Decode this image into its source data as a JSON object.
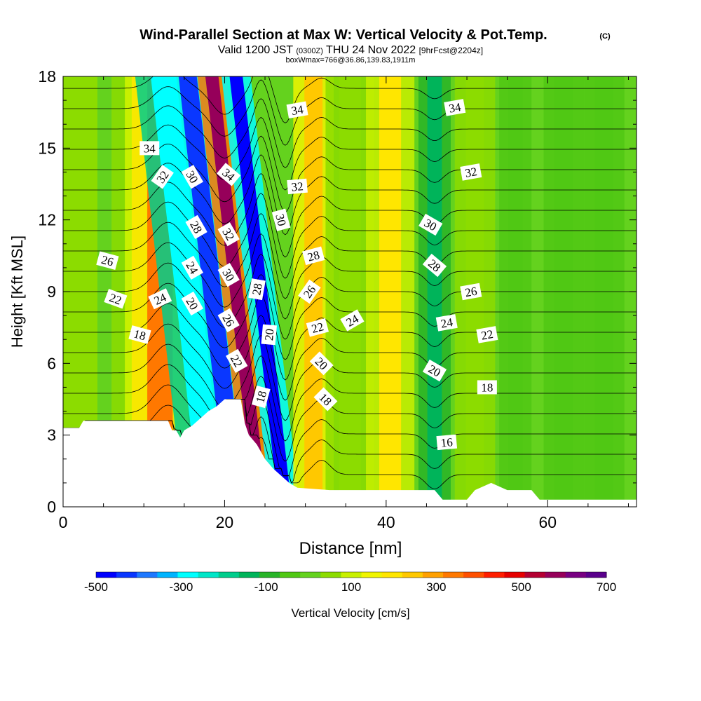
{
  "header": {
    "title": "Wind-Parallel Section at Max W: Vertical Velocity & Pot.Temp.",
    "copyright": "(C)",
    "valid_prefix": "Valid 1200 JST",
    "valid_utc": "(0300Z)",
    "valid_suffix": "THU 24 Nov 2022",
    "forecast": "[9hrFcst@2204z]",
    "box_info": "boxWmax=766@36.86,139.83,1911m"
  },
  "chart_data": {
    "type": "heatmap",
    "xlabel": "Distance [nm]",
    "ylabel": "Height [Kft MSL]",
    "xlim": [
      0,
      71
    ],
    "ylim": [
      0,
      18
    ],
    "x_ticks": [
      0,
      20,
      40,
      60
    ],
    "y_ticks": [
      0,
      3,
      6,
      9,
      12,
      15,
      18
    ],
    "colorbar": {
      "label": "Vertical Velocity [cm/s]",
      "tick_labels": [
        -500,
        -300,
        -100,
        100,
        300,
        500,
        700
      ],
      "colors": [
        "#0000ff",
        "#0a37ff",
        "#1e78ff",
        "#00b4ff",
        "#00ffff",
        "#00e6c8",
        "#00cd8c",
        "#00b45a",
        "#28b428",
        "#50c814",
        "#64d21e",
        "#8cdc00",
        "#c8f000",
        "#f0f500",
        "#ffe600",
        "#ffc800",
        "#ffa000",
        "#ff7800",
        "#ff5000",
        "#ff1e00",
        "#e60000",
        "#b40032",
        "#96005a",
        "#780082",
        "#5a008c"
      ]
    },
    "velocity_bands": [
      {
        "x": 2,
        "w": 5,
        "v": 40
      },
      {
        "x": 9,
        "w": 3,
        "v": 120
      },
      {
        "x": 12,
        "w": 3.5,
        "v": 350
      },
      {
        "x": 18.5,
        "w": 3.5,
        "v": -280
      },
      {
        "x": 21.5,
        "w": 2.5,
        "v": -450
      },
      {
        "x": 24.5,
        "w": 1.8,
        "v": 560
      },
      {
        "x": 27.5,
        "w": 1.8,
        "v": -480
      },
      {
        "x": 31,
        "w": 2.5,
        "v": 260
      },
      {
        "x": 35.5,
        "w": 3,
        "v": 60
      },
      {
        "x": 40.5,
        "w": 3,
        "v": 180
      },
      {
        "x": 46,
        "w": 2,
        "v": -150
      },
      {
        "x": 51,
        "w": 2.5,
        "v": 70
      },
      {
        "x": 56,
        "w": 2,
        "v": -60
      },
      {
        "x": 62,
        "w": 2.5,
        "v": -60
      },
      {
        "x": 67,
        "w": 2.5,
        "v": -40
      }
    ],
    "terrain": [
      [
        0,
        3.3
      ],
      [
        2,
        3.3
      ],
      [
        2.5,
        3.6
      ],
      [
        13,
        3.6
      ],
      [
        13.5,
        3.2
      ],
      [
        14,
        3.2
      ],
      [
        14.5,
        2.9
      ],
      [
        15,
        3.2
      ],
      [
        16,
        3.4
      ],
      [
        17,
        3.7
      ],
      [
        18,
        4.0
      ],
      [
        19,
        4.2
      ],
      [
        20,
        4.5
      ],
      [
        22,
        4.5
      ],
      [
        22.5,
        3.5
      ],
      [
        23,
        3.0
      ],
      [
        24,
        2.6
      ],
      [
        25,
        2.0
      ],
      [
        26,
        1.6
      ],
      [
        27,
        1.3
      ],
      [
        28,
        1.0
      ],
      [
        29,
        0.8
      ],
      [
        33,
        0.7
      ],
      [
        40,
        0.7
      ],
      [
        46,
        0.7
      ],
      [
        47,
        0.3
      ],
      [
        50,
        0.3
      ],
      [
        51,
        0.7
      ],
      [
        53,
        1.0
      ],
      [
        55,
        0.7
      ],
      [
        58,
        0.7
      ],
      [
        59,
        0.3
      ],
      [
        71,
        0.3
      ]
    ],
    "theta_contour_values": [
      16,
      17,
      18,
      19,
      20,
      21,
      22,
      23,
      24,
      25,
      26,
      27,
      28,
      29,
      30,
      31,
      32,
      33,
      34,
      35
    ],
    "theta_labels": [
      {
        "text": "34",
        "x": 10.7,
        "y": 15.0,
        "angle": 0
      },
      {
        "text": "32",
        "x": 12.3,
        "y": 13.8,
        "angle": -55
      },
      {
        "text": "30",
        "x": 16.0,
        "y": 13.8,
        "angle": 60
      },
      {
        "text": "34",
        "x": 20.5,
        "y": 13.9,
        "angle": 40
      },
      {
        "text": "34",
        "x": 29.0,
        "y": 16.6,
        "angle": -10
      },
      {
        "text": "34",
        "x": 48.5,
        "y": 16.7,
        "angle": -10
      },
      {
        "text": "32",
        "x": 29.0,
        "y": 13.4,
        "angle": -5
      },
      {
        "text": "32",
        "x": 50.5,
        "y": 14.0,
        "angle": -10
      },
      {
        "text": "28",
        "x": 16.5,
        "y": 11.7,
        "angle": 60
      },
      {
        "text": "32",
        "x": 20.5,
        "y": 11.4,
        "angle": 60
      },
      {
        "text": "30",
        "x": 27.0,
        "y": 12.0,
        "angle": 75
      },
      {
        "text": "30",
        "x": 45.5,
        "y": 11.8,
        "angle": 30
      },
      {
        "text": "28",
        "x": 31.0,
        "y": 10.5,
        "angle": -15
      },
      {
        "text": "28",
        "x": 46.0,
        "y": 10.1,
        "angle": 40
      },
      {
        "text": "26",
        "x": 5.5,
        "y": 10.3,
        "angle": 15
      },
      {
        "text": "24",
        "x": 16.0,
        "y": 10.0,
        "angle": 60
      },
      {
        "text": "30",
        "x": 20.5,
        "y": 9.7,
        "angle": 60
      },
      {
        "text": "28",
        "x": 24.0,
        "y": 9.1,
        "angle": -80
      },
      {
        "text": "26",
        "x": 30.5,
        "y": 9.0,
        "angle": -55
      },
      {
        "text": "26",
        "x": 50.5,
        "y": 9.0,
        "angle": -10
      },
      {
        "text": "22",
        "x": 6.5,
        "y": 8.7,
        "angle": 20
      },
      {
        "text": "24",
        "x": 12.0,
        "y": 8.7,
        "angle": -25
      },
      {
        "text": "20",
        "x": 16.0,
        "y": 8.5,
        "angle": 60
      },
      {
        "text": "26",
        "x": 20.5,
        "y": 7.8,
        "angle": 60
      },
      {
        "text": "20",
        "x": 25.5,
        "y": 7.2,
        "angle": -85
      },
      {
        "text": "22",
        "x": 31.5,
        "y": 7.5,
        "angle": -15
      },
      {
        "text": "24",
        "x": 35.8,
        "y": 7.8,
        "angle": -30
      },
      {
        "text": "24",
        "x": 47.5,
        "y": 7.7,
        "angle": -10
      },
      {
        "text": "22",
        "x": 52.5,
        "y": 7.2,
        "angle": -10
      },
      {
        "text": "18",
        "x": 9.5,
        "y": 7.2,
        "angle": 15
      },
      {
        "text": "22",
        "x": 21.5,
        "y": 6.1,
        "angle": 60
      },
      {
        "text": "20",
        "x": 32.0,
        "y": 6.0,
        "angle": 45
      },
      {
        "text": "20",
        "x": 46.0,
        "y": 5.7,
        "angle": 30
      },
      {
        "text": "18",
        "x": 24.5,
        "y": 4.6,
        "angle": -75
      },
      {
        "text": "18",
        "x": 32.5,
        "y": 4.5,
        "angle": 45
      },
      {
        "text": "18",
        "x": 52.5,
        "y": 5.0,
        "angle": 0
      },
      {
        "text": "16",
        "x": 47.5,
        "y": 2.7,
        "angle": -5
      }
    ]
  }
}
